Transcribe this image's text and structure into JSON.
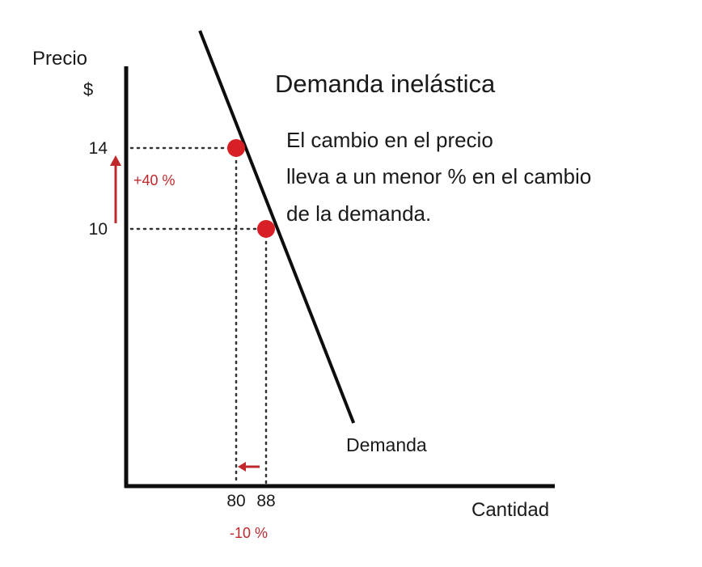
{
  "colors": {
    "axis": "#0d0d0d",
    "curve": "#0d0d0d",
    "point": "#d81f26",
    "change": "#c0282b",
    "guide": "#333333",
    "text": "#1a1a1a"
  },
  "chart_data": {
    "type": "line",
    "title": "Demanda inelástica",
    "description_lines": [
      "El cambio en el precio",
      "lleva a un menor % en el cambio",
      "de la demanda."
    ],
    "ylabel": "Precio",
    "ylabel_unit": "$",
    "xlabel": "Cantidad",
    "series": [
      {
        "name": "Demanda",
        "x": [
          70.3,
          111.4
        ],
        "y": [
          19.8,
          0.4
        ]
      }
    ],
    "points": [
      {
        "x": 80,
        "y": 14
      },
      {
        "x": 88,
        "y": 10
      }
    ],
    "x_ticks": [
      80,
      88
    ],
    "y_ticks": [
      14,
      10
    ],
    "price_change_label": "+40 %",
    "quantity_change_label": "-10 %",
    "grid": false
  }
}
